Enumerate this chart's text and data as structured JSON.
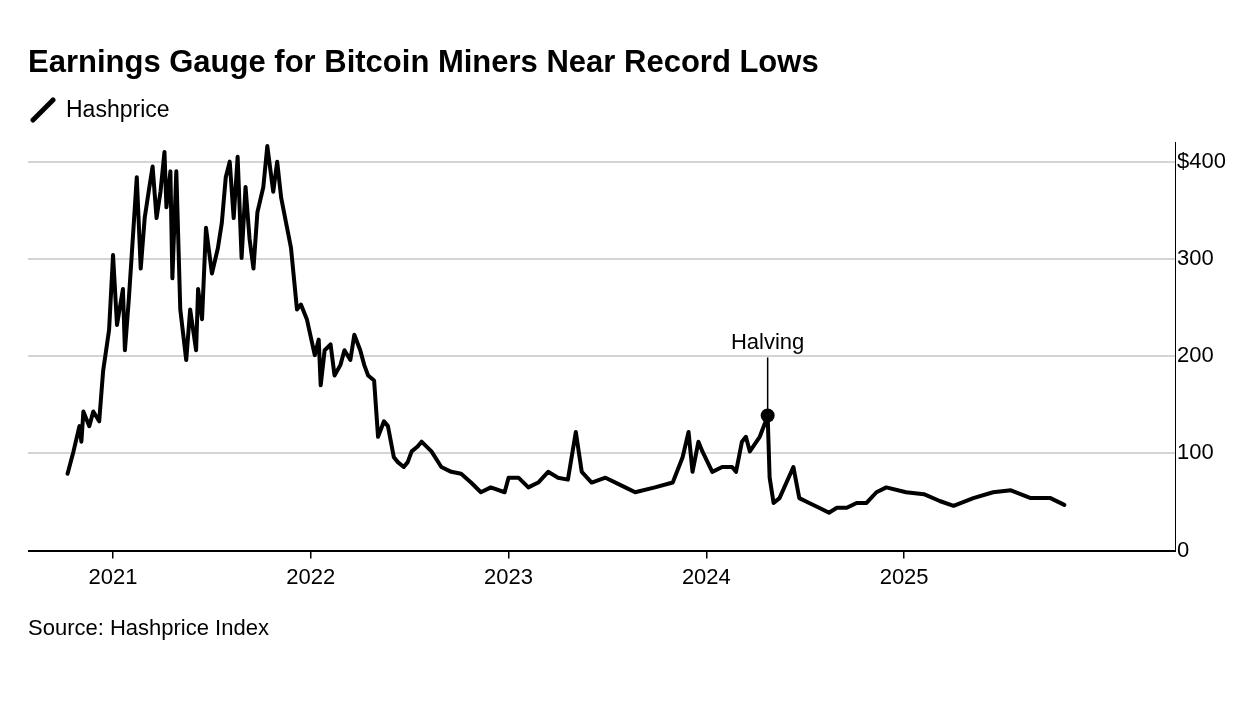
{
  "chart_data": {
    "type": "line",
    "title": "Earnings Gauge for Bitcoin Miners Near Record Lows",
    "legend": "top left",
    "series": [
      {
        "name": "Hashprice",
        "color": "#000000",
        "x": [
          2020.77,
          2020.8,
          2020.83,
          2020.84,
          2020.85,
          2020.88,
          2020.9,
          2020.93,
          2020.95,
          2020.98,
          2021.0,
          2021.02,
          2021.05,
          2021.06,
          2021.08,
          2021.1,
          2021.12,
          2021.14,
          2021.16,
          2021.18,
          2021.2,
          2021.22,
          2021.24,
          2021.26,
          2021.27,
          2021.29,
          2021.3,
          2021.32,
          2021.34,
          2021.37,
          2021.39,
          2021.42,
          2021.43,
          2021.45,
          2021.47,
          2021.5,
          2021.53,
          2021.55,
          2021.57,
          2021.59,
          2021.61,
          2021.63,
          2021.65,
          2021.67,
          2021.69,
          2021.71,
          2021.73,
          2021.76,
          2021.78,
          2021.81,
          2021.83,
          2021.85,
          2021.88,
          2021.9,
          2021.93,
          2021.95,
          2021.98,
          2022.02,
          2022.04,
          2022.05,
          2022.07,
          2022.1,
          2022.12,
          2022.15,
          2022.17,
          2022.2,
          2022.22,
          2022.25,
          2022.27,
          2022.29,
          2022.32,
          2022.34,
          2022.37,
          2022.39,
          2022.42,
          2022.44,
          2022.47,
          2022.49,
          2022.51,
          2022.54,
          2022.56,
          2022.61,
          2022.66,
          2022.71,
          2022.76,
          2022.81,
          2022.86,
          2022.91,
          2022.98,
          2023.0,
          2023.05,
          2023.1,
          2023.15,
          2023.2,
          2023.25,
          2023.3,
          2023.34,
          2023.37,
          2023.42,
          2023.49,
          2023.59,
          2023.64,
          2023.74,
          2023.83,
          2023.88,
          2023.91,
          2023.93,
          2023.96,
          2023.98,
          2024.03,
          2024.08,
          2024.13,
          2024.15,
          2024.18,
          2024.2,
          2024.22,
          2024.27,
          2024.3,
          2024.31,
          2024.32,
          2024.34,
          2024.37,
          2024.44,
          2024.47,
          2024.52,
          2024.57,
          2024.62,
          2024.66,
          2024.71,
          2024.76,
          2024.81,
          2024.86,
          2024.91,
          2025.01,
          2025.1,
          2025.18,
          2025.25,
          2025.35,
          2025.45,
          2025.54,
          2025.64,
          2025.74,
          2025.81
        ],
        "values": [
          79,
          102,
          128,
          112,
          143,
          128,
          143,
          133,
          185,
          227,
          304,
          232,
          269,
          206,
          259,
          321,
          384,
          290,
          342,
          369,
          395,
          342,
          369,
          410,
          353,
          390,
          280,
          390,
          248,
          196,
          248,
          206,
          269,
          238,
          332,
          285,
          311,
          337,
          384,
          400,
          342,
          405,
          301,
          374,
          321,
          290,
          348,
          374,
          416,
          369,
          400,
          363,
          332,
          311,
          248,
          253,
          238,
          201,
          217,
          170,
          206,
          212,
          180,
          191,
          206,
          196,
          222,
          206,
          191,
          180,
          175,
          117,
          133,
          128,
          96,
          91,
          86,
          91,
          102,
          107,
          112,
          102,
          86,
          81,
          79,
          70,
          60,
          65,
          60,
          75,
          75,
          65,
          70,
          81,
          75,
          73,
          122,
          81,
          70,
          75,
          65,
          60,
          65,
          70,
          96,
          122,
          81,
          112,
          102,
          81,
          86,
          86,
          81,
          112,
          117,
          102,
          117,
          133,
          139,
          75,
          49,
          54,
          86,
          54,
          49,
          44,
          39,
          44,
          44,
          49,
          49,
          60,
          65,
          60,
          58,
          51,
          46,
          54,
          60,
          62,
          54,
          54,
          47
        ]
      }
    ],
    "xlim": [
      2020.57,
      2026.37
    ],
    "xticks": [
      2021,
      2022,
      2023,
      2024,
      2025
    ],
    "ylim": [
      0,
      420
    ],
    "yticks": [
      0,
      100,
      200,
      300,
      {
        "value": 400,
        "label": "$400"
      }
    ],
    "grid": "y",
    "marker": "none",
    "line_style": "solid",
    "annotations": [
      {
        "text": "Halving",
        "x": 2024.31,
        "y": 139
      },
      "Source: Hashprice Index"
    ]
  }
}
